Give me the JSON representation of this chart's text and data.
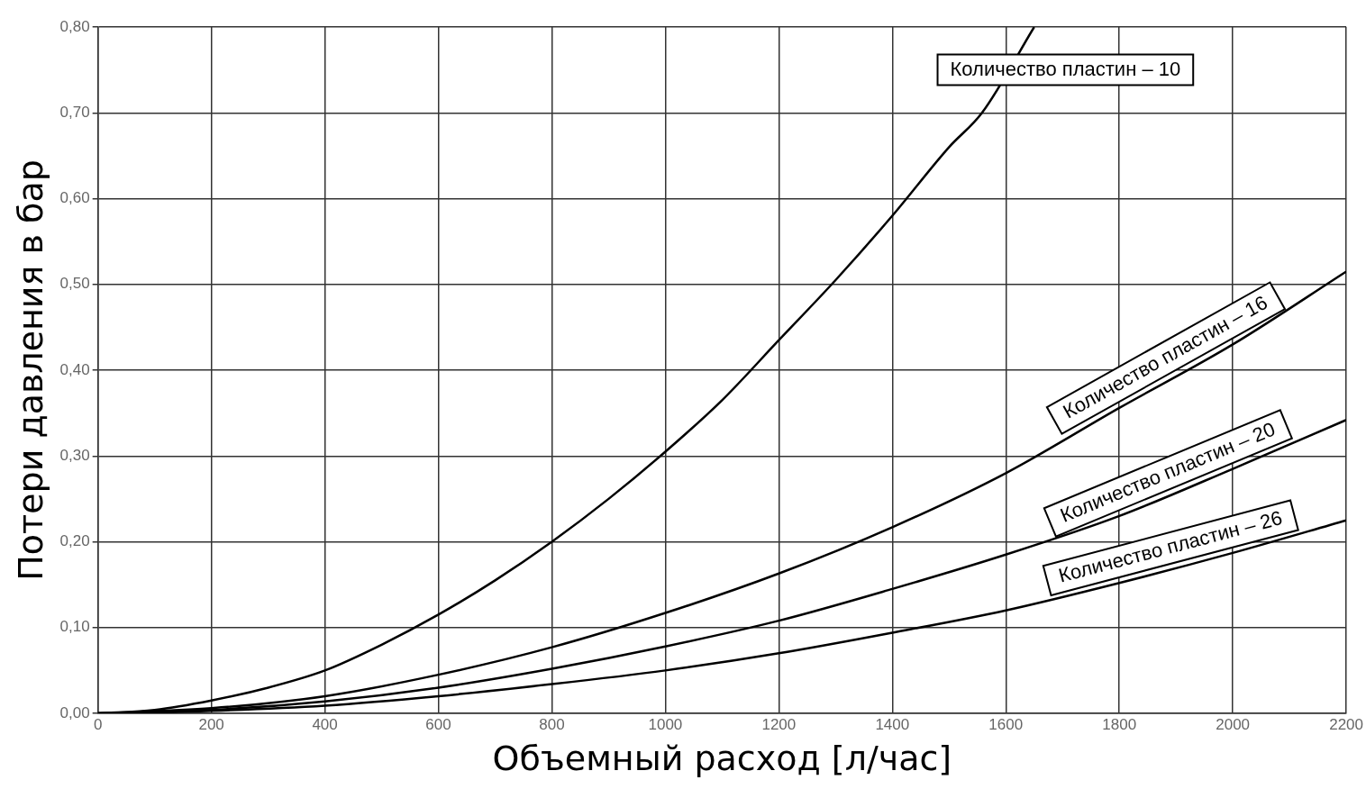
{
  "chart_data": {
    "type": "line",
    "xlabel": "Объемный расход [л/час]",
    "ylabel": "Потери давления в бар",
    "xlim": [
      0,
      2200
    ],
    "xticks": [
      0,
      200,
      400,
      600,
      800,
      1000,
      1200,
      1400,
      1600,
      1800,
      2000,
      2200
    ],
    "ylim": [
      0,
      0.8
    ],
    "yticks": [
      {
        "value": 0,
        "label": "0,00"
      },
      {
        "value": 0.1,
        "label": "0,10"
      },
      {
        "value": 0.2,
        "label": "0,20"
      },
      {
        "value": 0.3,
        "label": "0,30"
      },
      {
        "value": 0.4,
        "label": "0,40"
      },
      {
        "value": 0.5,
        "label": "0,50"
      },
      {
        "value": 0.6,
        "label": "0,60"
      },
      {
        "value": 0.7,
        "label": "0,70"
      },
      {
        "value": 0.8,
        "label": "0,80"
      }
    ],
    "grid": true,
    "legend": false,
    "marker": "none",
    "line_style": "solid",
    "series": [
      {
        "name": "Количество пластин – 10",
        "color": "#000000",
        "x": [
          0,
          100,
          200,
          300,
          400,
          500,
          600,
          700,
          800,
          900,
          1000,
          1100,
          1200,
          1300,
          1400,
          1500,
          1558,
          1650
        ],
        "values": [
          0,
          0.004,
          0.015,
          0.03,
          0.05,
          0.08,
          0.115,
          0.155,
          0.2,
          0.25,
          0.305,
          0.365,
          0.435,
          0.505,
          0.58,
          0.66,
          0.7,
          0.8
        ]
      },
      {
        "name": "Количество пластин – 16",
        "color": "#000000",
        "x": [
          0,
          200,
          400,
          600,
          800,
          1000,
          1200,
          1400,
          1600,
          1800,
          2000,
          2200
        ],
        "values": [
          0,
          0.006,
          0.02,
          0.045,
          0.077,
          0.117,
          0.163,
          0.217,
          0.28,
          0.356,
          0.43,
          0.515
        ]
      },
      {
        "name": "Количество пластин – 20",
        "color": "#000000",
        "x": [
          0,
          200,
          400,
          600,
          800,
          1000,
          1200,
          1400,
          1600,
          1800,
          2000,
          2200
        ],
        "values": [
          0,
          0.004,
          0.014,
          0.03,
          0.052,
          0.078,
          0.108,
          0.145,
          0.185,
          0.23,
          0.285,
          0.342
        ]
      },
      {
        "name": "Количество пластин – 26",
        "color": "#000000",
        "x": [
          0,
          200,
          400,
          600,
          800,
          1000,
          1200,
          1400,
          1600,
          1800,
          2000,
          2200
        ],
        "values": [
          0,
          0.003,
          0.009,
          0.02,
          0.034,
          0.05,
          0.07,
          0.094,
          0.12,
          0.152,
          0.187,
          0.225
        ]
      }
    ]
  }
}
